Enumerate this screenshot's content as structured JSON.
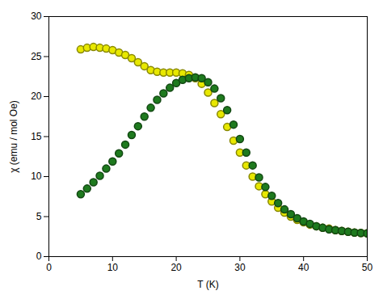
{
  "chart_data": {
    "type": "scatter",
    "xlabel": "T (K)",
    "ylabel": "χ (emu / mol Oe)",
    "xlim": [
      0,
      50
    ],
    "ylim": [
      0,
      30
    ],
    "xticks": [
      0,
      10,
      20,
      30,
      40,
      50
    ],
    "yticks": [
      0,
      5,
      10,
      15,
      20,
      25,
      30
    ],
    "grid": false,
    "x": [
      5,
      6,
      7,
      8,
      9,
      10,
      11,
      12,
      13,
      14,
      15,
      16,
      17,
      18,
      19,
      20,
      21,
      22,
      23,
      24,
      25,
      26,
      27,
      28,
      29,
      30,
      31,
      32,
      33,
      34,
      35,
      36,
      37,
      38,
      39,
      40,
      41,
      42,
      43,
      44,
      45,
      46,
      47,
      48,
      49,
      50
    ],
    "series": [
      {
        "color": "#e8e800",
        "marker": "circle",
        "values": [
          25.9,
          26.1,
          26.2,
          26.1,
          26.0,
          25.8,
          25.5,
          25.2,
          24.8,
          24.3,
          23.8,
          23.3,
          23.1,
          23.0,
          23.0,
          23.0,
          22.9,
          22.7,
          22.3,
          21.6,
          20.5,
          19.2,
          17.8,
          16.2,
          14.5,
          13.0,
          11.4,
          10.0,
          8.8,
          7.8,
          6.9,
          6.1,
          5.5,
          5.0,
          4.6,
          4.3,
          4.0,
          3.8,
          3.6,
          3.5,
          3.3,
          3.2,
          3.1,
          3.0,
          2.95,
          2.9
        ]
      },
      {
        "color": "#1e7a1e",
        "marker": "circle",
        "values": [
          7.8,
          8.5,
          9.3,
          10.1,
          11.0,
          11.9,
          12.9,
          14.0,
          15.2,
          16.3,
          17.5,
          18.6,
          19.6,
          20.4,
          21.1,
          21.7,
          22.1,
          22.3,
          22.4,
          22.3,
          21.8,
          21.0,
          19.8,
          18.3,
          16.5,
          14.7,
          13.0,
          11.4,
          9.9,
          8.7,
          7.6,
          6.7,
          5.9,
          5.3,
          4.8,
          4.4,
          4.1,
          3.8,
          3.6,
          3.4,
          3.3,
          3.2,
          3.1,
          3.0,
          2.95,
          2.9
        ]
      }
    ]
  }
}
